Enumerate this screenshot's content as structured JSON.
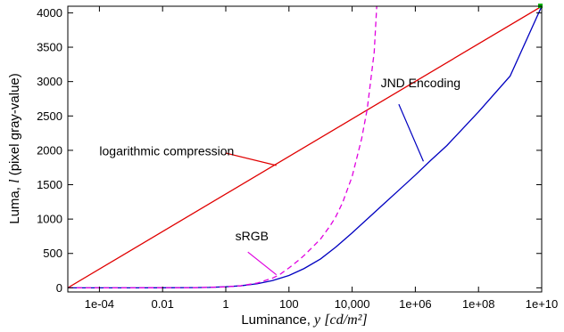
{
  "chart_data": {
    "type": "line",
    "title": "",
    "xlabel": {
      "prefix": "Luminance, ",
      "symbol": "y",
      "unit": "[cd/m²]"
    },
    "ylabel": {
      "prefix": "Luma, ",
      "symbol": "l",
      "suffix": " (pixel gray-value)"
    },
    "x_scale": "log10",
    "xlim": [
      1e-05,
      10000000000
    ],
    "ylim": [
      -60,
      4096
    ],
    "x_ticks": [
      {
        "value": 0.0001,
        "label": "1e-04"
      },
      {
        "value": 0.01,
        "label": "0.01"
      },
      {
        "value": 1,
        "label": "1"
      },
      {
        "value": 100,
        "label": "100"
      },
      {
        "value": 10000,
        "label": "10,000"
      },
      {
        "value": 1000000,
        "label": "1e+06"
      },
      {
        "value": 100000000,
        "label": "1e+08"
      },
      {
        "value": 10000000000,
        "label": "1e+10"
      }
    ],
    "y_ticks": [
      0,
      500,
      1000,
      1500,
      2000,
      2500,
      3000,
      3500,
      4000
    ],
    "grid": false,
    "legend": "none",
    "series": [
      {
        "color": "#e00000",
        "style": "solid",
        "x": [
          1e-05,
          10000000000
        ],
        "y": [
          0,
          4095
        ]
      },
      {
        "color": "#0000c0",
        "style": "solid",
        "x": [
          1e-05,
          0.001,
          0.01,
          0.1,
          0.3,
          1,
          3,
          10,
          30,
          100,
          300,
          1000,
          3000,
          10000,
          30000,
          100000,
          300000,
          1000000,
          3000000,
          10000000,
          100000000,
          1000000000,
          10000000000
        ],
        "y": [
          0,
          0,
          1,
          3,
          6,
          15,
          30,
          60,
          105,
          180,
          280,
          420,
          590,
          800,
          1000,
          1220,
          1420,
          1640,
          1850,
          2070,
          2560,
          3080,
          4095
        ]
      },
      {
        "color": "#e000e0",
        "style": "dashed",
        "x": [
          1e-05,
          0.001,
          0.1,
          1,
          3,
          10,
          30,
          50,
          100,
          200,
          300,
          500,
          1000,
          2000,
          3000,
          5000,
          10000,
          20000,
          30000,
          50000,
          60000
        ],
        "y": [
          0,
          0,
          2,
          14,
          30,
          70,
          140,
          190,
          290,
          400,
          470,
          570,
          710,
          900,
          1030,
          1240,
          1620,
          2170,
          2600,
          3430,
          4096
        ]
      }
    ],
    "annotations": [
      {
        "text": "JND Encoding",
        "color": "#0000c0",
        "text_x": 80000,
        "text_y": 2920,
        "line": [
          [
            300000,
            2670
          ],
          [
            1800000,
            1840
          ]
        ]
      },
      {
        "text": "logarithmic compression",
        "color": "#e00000",
        "text_x": 0.0001,
        "text_y": 1930,
        "line": [
          [
            1,
            1960
          ],
          [
            40,
            1780
          ]
        ]
      },
      {
        "text": "sRGB",
        "color": "#e000e0",
        "text_x": 2,
        "text_y": 690,
        "line": [
          [
            5,
            520
          ],
          [
            40,
            190
          ]
        ]
      }
    ]
  }
}
